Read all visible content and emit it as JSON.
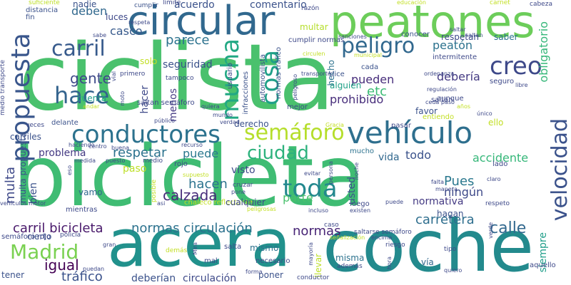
{
  "colors": {
    "background": "#ffffff",
    "palette": [
      "#440154",
      "#3b528b",
      "#21918c",
      "#5ec962",
      "#fde725",
      "#2c728e",
      "#35b779",
      "#90d743",
      "#472d7b",
      "#31688e",
      "#287d8e",
      "#20a486",
      "#75d054",
      "#c2df23",
      "#414487"
    ]
  },
  "words": [
    {
      "text": "ciclista",
      "color": "#4ac16d"
    },
    {
      "text": "bicicleta",
      "color": "#3fbc73"
    },
    {
      "text": "acera",
      "color": "#21918c"
    },
    {
      "text": "coche",
      "color": "#238a8d"
    },
    {
      "text": "peatones",
      "color": "#6ccd5a"
    },
    {
      "text": "circular",
      "color": "#31688e"
    },
    {
      "text": "conductores",
      "color": "#2c728e"
    },
    {
      "text": "vehículo",
      "color": "#2e6f8e"
    },
    {
      "text": "semáforo",
      "color": "#b5de2b"
    },
    {
      "text": "propuesta",
      "color": "#39568c"
    },
    {
      "text": "mucha",
      "color": "#22a884"
    },
    {
      "text": "carril",
      "color": "#375a8c"
    },
    {
      "text": "hace",
      "color": "#33638d"
    },
    {
      "text": "cosa",
      "color": "#1fa088"
    },
    {
      "text": "peligro",
      "color": "#31688e"
    },
    {
      "text": "creo",
      "color": "#3e4989"
    },
    {
      "text": "velocidad",
      "color": "#3b528b"
    },
    {
      "text": "ciudad",
      "color": "#2db27d"
    },
    {
      "text": "toda",
      "color": "#23888e"
    },
    {
      "text": "Madrid",
      "color": "#7ad151"
    },
    {
      "text": "calzada",
      "color": "#472c7a"
    },
    {
      "text": "normas circulación",
      "color": "#2c728e"
    },
    {
      "text": "carril bicicleta",
      "color": "#48186a"
    },
    {
      "text": "igual",
      "color": "#440154"
    },
    {
      "text": "calle",
      "color": "#31688e"
    },
    {
      "text": "tráfico",
      "color": "#3b528b"
    },
    {
      "text": "multa",
      "color": "#3e4989"
    },
    {
      "text": "gente",
      "color": "#3e4989"
    },
    {
      "text": "respetar",
      "color": "#2c728e"
    },
    {
      "text": "Pues",
      "color": "#2a788e"
    },
    {
      "text": "normas",
      "color": "#482576"
    },
    {
      "text": "carretera",
      "color": "#2e6e8e"
    },
    {
      "text": "hacen",
      "color": "#2c728e"
    },
    {
      "text": "parece",
      "color": "#2c728e"
    },
    {
      "text": "deben",
      "color": "#31688e"
    },
    {
      "text": "casco",
      "color": "#375a8c"
    },
    {
      "text": "etc",
      "color": "#3bbb75"
    },
    {
      "text": "debería",
      "color": "#443a83"
    },
    {
      "text": "obligatorio",
      "color": "#35b779"
    },
    {
      "text": "accidente",
      "color": "#35b779"
    },
    {
      "text": "problema",
      "color": "#443a83"
    },
    {
      "text": "peatón",
      "color": "#2c728e"
    },
    {
      "text": "pueden",
      "color": "#472d7b"
    },
    {
      "text": "prohibido",
      "color": "#472d7b"
    },
    {
      "text": "puede",
      "color": "#2a788e"
    },
    {
      "text": "normativa",
      "color": "#443a83"
    },
    {
      "text": "vida",
      "color": "#31688e"
    },
    {
      "text": "todo",
      "color": "#3b528b"
    },
    {
      "text": "ningún",
      "color": "#3e4989"
    },
    {
      "text": "parte",
      "color": "#4ac16d"
    },
    {
      "text": "circulación",
      "color": "#3e4989"
    },
    {
      "text": "deberían",
      "color": "#3b528b"
    },
    {
      "text": "seguridad",
      "color": "#3b528b"
    },
    {
      "text": "hacer",
      "color": "#3e4989"
    },
    {
      "text": "cuenta",
      "color": "#1f9e89"
    },
    {
      "text": "alguien",
      "color": "#1fa187"
    },
    {
      "text": "luces",
      "color": "#3e4989"
    },
    {
      "text": "nadie",
      "color": "#3b528b"
    },
    {
      "text": "acuerdo",
      "color": "#3b528b"
    },
    {
      "text": "comentario",
      "color": "#3b528b"
    },
    {
      "text": "multar",
      "color": "#b5de2b"
    },
    {
      "text": "solo",
      "color": "#c2df23"
    },
    {
      "text": "menos",
      "color": "#443a83"
    },
    {
      "text": "derecho",
      "color": "#3b528b"
    },
    {
      "text": "visto",
      "color": "#3e4989"
    },
    {
      "text": "paso",
      "color": "#bddf26"
    },
    {
      "text": "bien",
      "color": "#3b528b"
    },
    {
      "text": "vamo",
      "color": "#31688e"
    },
    {
      "text": "usted",
      "color": "#3b528b"
    },
    {
      "text": "ello",
      "color": "#c2df23"
    },
    {
      "text": "tener",
      "color": "#3b528b"
    },
    {
      "text": "vía",
      "color": "#31688e"
    },
    {
      "text": "hagan",
      "color": "#3b528b"
    },
    {
      "text": "mismo",
      "color": "#2c728e"
    },
    {
      "text": "poner",
      "color": "#3b528b"
    },
    {
      "text": "misma",
      "color": "#2c728e"
    },
    {
      "text": "llevar",
      "color": "#bddf26"
    },
    {
      "text": "siempre",
      "color": "#1f9e89"
    },
    {
      "text": "multa propuesta",
      "color": "#3b528b"
    },
    {
      "text": "hecho",
      "color": "#2c728e"
    },
    {
      "text": "favor",
      "color": "#3b528b"
    },
    {
      "text": "cierto",
      "color": "#3b528b"
    },
    {
      "text": "mucho",
      "color": "#2c728e"
    },
    {
      "text": "carriles",
      "color": "#3b528b"
    },
    {
      "text": "cada",
      "color": "#3b528b"
    },
    {
      "text": "aunque",
      "color": "#3e4989"
    },
    {
      "text": "saltan",
      "color": "#3e4989"
    },
    {
      "text": "lado",
      "color": "#3e4989"
    },
    {
      "text": "educación",
      "color": "#c2df23"
    },
    {
      "text": "carnet",
      "color": "#c2df23"
    },
    {
      "text": "suficiente",
      "color": "#bddf26"
    },
    {
      "text": "cumplir",
      "color": "#3b528b"
    },
    {
      "text": "límite",
      "color": "#3e4989"
    },
    {
      "text": "razón",
      "color": "#3e4989"
    },
    {
      "text": "cabeza",
      "color": "#c2df23"
    },
    {
      "text": "conocer",
      "color": "#3e4989"
    },
    {
      "text": "respetan",
      "color": "#3b528b"
    },
    {
      "text": "saber",
      "color": "#3e4989"
    },
    {
      "text": "intermitente",
      "color": "#2c728e"
    },
    {
      "text": "seguro",
      "color": "#3e4989"
    },
    {
      "text": "dice",
      "color": "#3e4989"
    },
    {
      "text": "mejor",
      "color": "#3b528b"
    },
    {
      "text": "entiendo",
      "color": "#3e4989"
    },
    {
      "text": "pasar",
      "color": "#c2df23"
    },
    {
      "text": "usuario",
      "color": "#3e4989"
    },
    {
      "text": "infracciones",
      "color": "#3e4989"
    },
    {
      "text": "automovilista",
      "color": "#3b528b"
    },
    {
      "text": "normas tráfico",
      "color": "#3b528b"
    },
    {
      "text": "cumplir normas",
      "color": "#3b528b"
    },
    {
      "text": "fin",
      "color": "#3e4989"
    },
    {
      "text": "distancia",
      "color": "#3b528b"
    },
    {
      "text": "medio transporte",
      "color": "#3b528b"
    },
    {
      "text": "saltan semáforo",
      "color": "#3e4989"
    },
    {
      "text": "tampoco",
      "color": "#3e4989"
    },
    {
      "text": "primero",
      "color": "#3e4989"
    },
    {
      "text": "delante",
      "color": "#3e4989"
    },
    {
      "text": "veces",
      "color": "#3b528b"
    },
    {
      "text": "rojo",
      "color": "#3e4989"
    },
    {
      "text": "chaleco reflectante",
      "color": "#3e4989"
    },
    {
      "text": "cualquier",
      "color": "#c2df23"
    },
    {
      "text": "salta",
      "color": "#3e4989"
    },
    {
      "text": "mal",
      "color": "#3e4989"
    },
    {
      "text": "necesario",
      "color": "#3e4989"
    },
    {
      "text": "policía",
      "color": "#3e4989"
    },
    {
      "text": "semáforo rojo",
      "color": "#3e4989"
    },
    {
      "text": "caso",
      "color": "#3e4989"
    },
    {
      "text": "saltarse semáforo",
      "color": "#3e4989"
    },
    {
      "text": "luego",
      "color": "#3e4989"
    },
    {
      "text": "además",
      "color": "#3e4989"
    },
    {
      "text": "aquello",
      "color": "#3e4989"
    },
    {
      "text": "respeto",
      "color": "#3e4989"
    },
    {
      "text": "riesgo",
      "color": "#3e4989"
    },
    {
      "text": "mientras",
      "color": "#3e4989"
    },
    {
      "text": "medio",
      "color": "#3e4989"
    },
    {
      "text": "gran",
      "color": "#3e4989"
    },
    {
      "text": "conductor",
      "color": "#3e4989"
    },
    {
      "text": "forma",
      "color": "#3e4989"
    },
    {
      "text": "puedan",
      "color": "#3e4989"
    },
    {
      "text": "demás",
      "color": "#3e4989"
    },
    {
      "text": "tipo",
      "color": "#c2df23"
    },
    {
      "text": "encima",
      "color": "#3e4989"
    },
    {
      "text": "cruzar",
      "color": "#3e4989"
    },
    {
      "text": "pone",
      "color": "#3e4989"
    },
    {
      "text": "peligrosas",
      "color": "#3e4989"
    },
    {
      "text": "incluso",
      "color": "#c2df23"
    },
    {
      "text": "existen",
      "color": "#3e4989"
    },
    {
      "text": "evitar",
      "color": "#3e4989"
    },
    {
      "text": "falta",
      "color": "#3e4989"
    },
    {
      "text": "manera",
      "color": "#3e4989"
    },
    {
      "text": "claro",
      "color": "#3e4989"
    },
    {
      "text": "supuesto",
      "color": "#3e4989"
    },
    {
      "text": "posible",
      "color": "#c2df23"
    },
    {
      "text": "puesto",
      "color": "#c2df23"
    },
    {
      "text": "medida",
      "color": "#3e4989"
    },
    {
      "text": "recurso",
      "color": "#3e4989"
    },
    {
      "text": "buena",
      "color": "#3e4989"
    },
    {
      "text": "centro",
      "color": "#3e4989"
    },
    {
      "text": "haciendo",
      "color": "#3e4989"
    },
    {
      "text": "público",
      "color": "#3e4989"
    },
    {
      "text": "verdad",
      "color": "#3e4989"
    },
    {
      "text": "quiera",
      "color": "#3e4989"
    },
    {
      "text": "mundo",
      "color": "#3e4989"
    },
    {
      "text": "Gracia",
      "color": "#3e4989"
    },
    {
      "text": "regulación",
      "color": "#c2df23"
    },
    {
      "text": "ordenanza",
      "color": "#3e4989"
    },
    {
      "text": "único",
      "color": "#3e4989"
    },
    {
      "text": "años",
      "color": "#3e4989"
    },
    {
      "text": "ceda paso",
      "color": "#c2df23"
    },
    {
      "text": "saltan",
      "color": "#3e4989"
    },
    {
      "text": "municipal",
      "color": "#3e4989"
    },
    {
      "text": "sanciones",
      "color": "#c2df23"
    },
    {
      "text": "circulen",
      "color": "#3e4989"
    },
    {
      "text": "respeta",
      "color": "#c2df23"
    },
    {
      "text": "vial",
      "color": "#3e4989"
    },
    {
      "text": "moto",
      "color": "#3e4989"
    },
    {
      "text": "andar",
      "color": "#3e4989"
    },
    {
      "text": "transporte",
      "color": "#c2df23"
    },
    {
      "text": "hora",
      "color": "#3e4989"
    },
    {
      "text": "quiero",
      "color": "#3e4989"
    },
    {
      "text": "verde",
      "color": "#3e4989"
    },
    {
      "text": "persona",
      "color": "#3e4989"
    },
    {
      "text": "noche",
      "color": "#3e4989"
    },
    {
      "text": "mayoría",
      "color": "#3e4989"
    },
    {
      "text": "Mira",
      "color": "#3e4989"
    },
    {
      "text": "señalización",
      "color": "#3e4989"
    },
    {
      "text": "peligroso",
      "color": "#c2df23"
    },
    {
      "text": "libre",
      "color": "#3e4989"
    },
    {
      "text": "vehículos motor",
      "color": "#3e4989"
    },
    {
      "text": "asi",
      "color": "#3e4989"
    },
    {
      "text": "eso",
      "color": "#3e4989"
    },
    {
      "text": "sabe",
      "color": "#3e4989"
    },
    {
      "text": "puede",
      "color": "#3e4989"
    },
    {
      "text": "saltar",
      "color": "#3e4989"
    },
    {
      "text": "conocer",
      "color": "#3e4989"
    }
  ]
}
